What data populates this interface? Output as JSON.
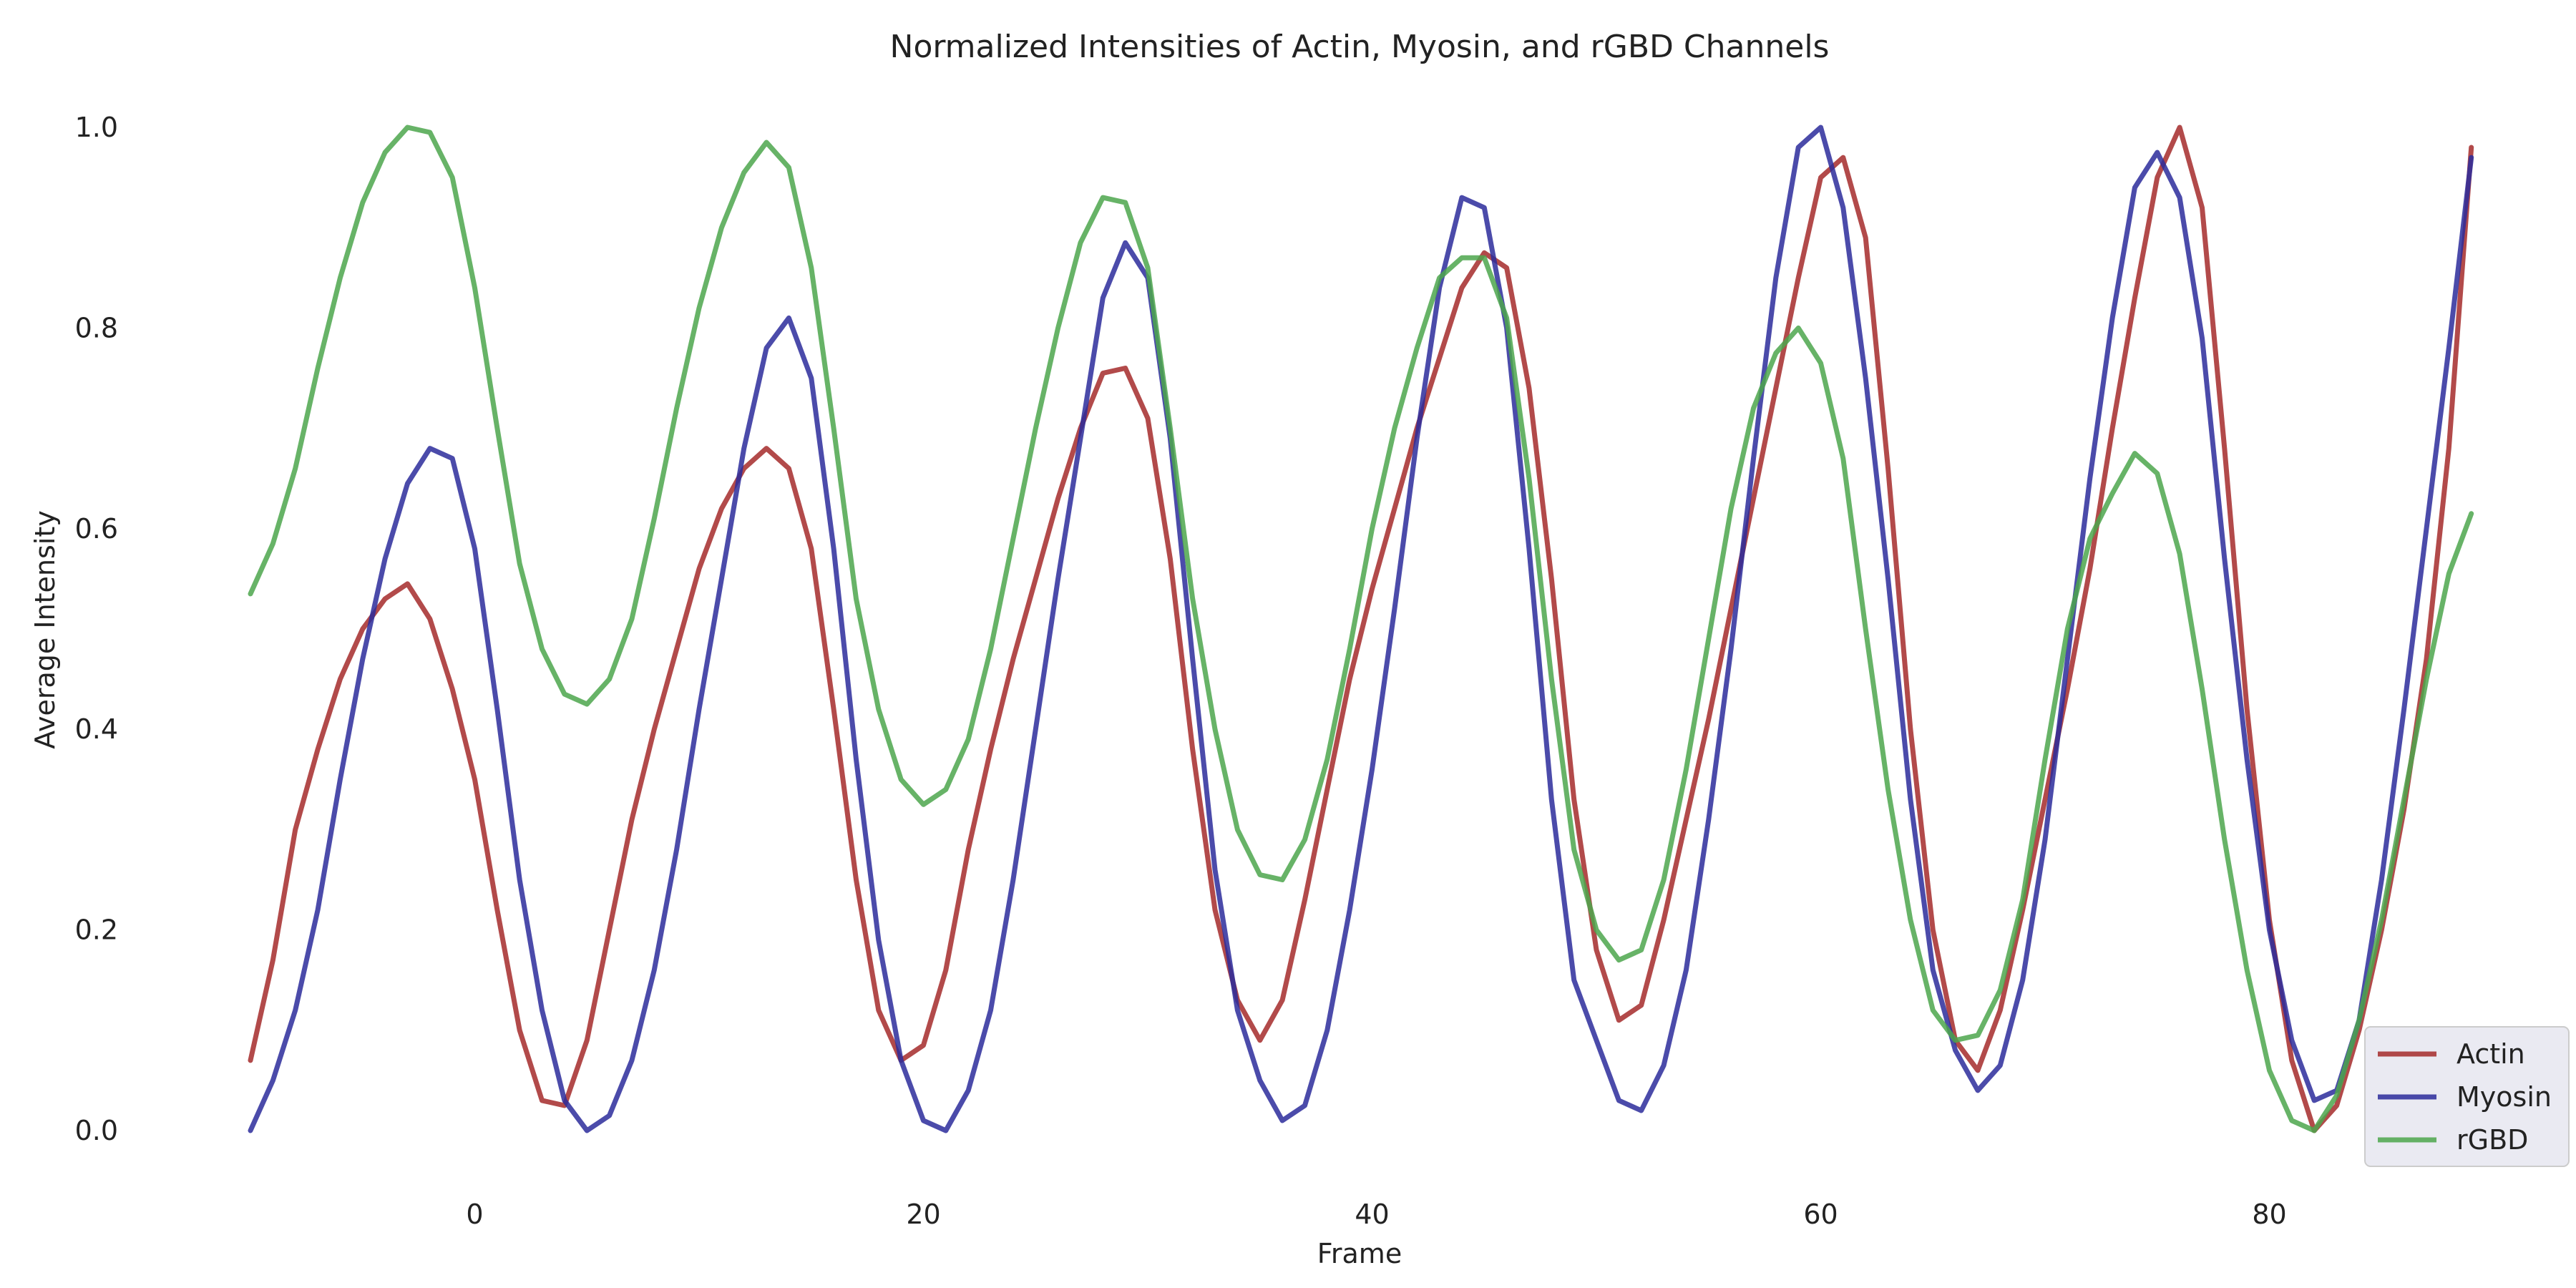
{
  "chart_data": {
    "type": "line",
    "title": "Normalized Intensities of Actin, Myosin, and rGBD Channels",
    "xlabel": "Frame",
    "ylabel": "Average Intensity",
    "xlim": [
      -10,
      89
    ],
    "ylim": [
      0.0,
      1.0
    ],
    "xticks": [
      0,
      20,
      40,
      60,
      80
    ],
    "yticks": [
      0.0,
      0.2,
      0.4,
      0.6,
      0.8,
      1.0
    ],
    "xtick_labels": [
      "0",
      "20",
      "40",
      "60",
      "80"
    ],
    "ytick_labels": [
      "0.0",
      "0.2",
      "0.4",
      "0.6",
      "0.8",
      "1.0"
    ],
    "grid": false,
    "legend_position": "bottom-right",
    "x_start": -10,
    "x_step": 1,
    "series": [
      {
        "name": "Actin",
        "color": "#A52A2A",
        "values": [
          0.07,
          0.17,
          0.3,
          0.38,
          0.45,
          0.5,
          0.53,
          0.545,
          0.51,
          0.44,
          0.35,
          0.22,
          0.1,
          0.03,
          0.025,
          0.09,
          0.2,
          0.31,
          0.4,
          0.48,
          0.56,
          0.62,
          0.66,
          0.68,
          0.66,
          0.58,
          0.42,
          0.25,
          0.12,
          0.07,
          0.085,
          0.16,
          0.28,
          0.38,
          0.47,
          0.55,
          0.63,
          0.7,
          0.755,
          0.76,
          0.71,
          0.57,
          0.38,
          0.22,
          0.13,
          0.09,
          0.13,
          0.23,
          0.34,
          0.45,
          0.54,
          0.62,
          0.7,
          0.77,
          0.84,
          0.875,
          0.86,
          0.74,
          0.55,
          0.33,
          0.18,
          0.11,
          0.125,
          0.21,
          0.31,
          0.41,
          0.52,
          0.63,
          0.74,
          0.85,
          0.95,
          0.97,
          0.89,
          0.66,
          0.4,
          0.2,
          0.09,
          0.06,
          0.12,
          0.22,
          0.33,
          0.44,
          0.56,
          0.7,
          0.83,
          0.95,
          1.0,
          0.92,
          0.68,
          0.42,
          0.21,
          0.07,
          0.0,
          0.025,
          0.1,
          0.2,
          0.32,
          0.47,
          0.68,
          0.98
        ]
      },
      {
        "name": "Myosin",
        "color": "#2B2B9B",
        "values": [
          0.0,
          0.05,
          0.12,
          0.22,
          0.35,
          0.47,
          0.57,
          0.645,
          0.68,
          0.67,
          0.58,
          0.42,
          0.25,
          0.12,
          0.03,
          0.0,
          0.015,
          0.07,
          0.16,
          0.28,
          0.42,
          0.55,
          0.68,
          0.78,
          0.81,
          0.75,
          0.58,
          0.37,
          0.19,
          0.07,
          0.01,
          0.0,
          0.04,
          0.12,
          0.25,
          0.4,
          0.55,
          0.69,
          0.83,
          0.885,
          0.85,
          0.69,
          0.47,
          0.26,
          0.12,
          0.05,
          0.01,
          0.025,
          0.1,
          0.22,
          0.36,
          0.52,
          0.69,
          0.84,
          0.93,
          0.92,
          0.8,
          0.58,
          0.33,
          0.15,
          0.09,
          0.03,
          0.02,
          0.065,
          0.16,
          0.31,
          0.48,
          0.67,
          0.85,
          0.98,
          1.0,
          0.92,
          0.75,
          0.55,
          0.33,
          0.16,
          0.08,
          0.04,
          0.065,
          0.15,
          0.29,
          0.47,
          0.65,
          0.81,
          0.94,
          0.975,
          0.93,
          0.79,
          0.57,
          0.37,
          0.2,
          0.09,
          0.03,
          0.04,
          0.11,
          0.25,
          0.42,
          0.6,
          0.78,
          0.97
        ]
      },
      {
        "name": "rGBD",
        "color": "#4CA64C",
        "values": [
          0.535,
          0.585,
          0.66,
          0.76,
          0.85,
          0.925,
          0.975,
          1.0,
          0.995,
          0.95,
          0.84,
          0.7,
          0.565,
          0.48,
          0.435,
          0.425,
          0.45,
          0.51,
          0.61,
          0.72,
          0.82,
          0.9,
          0.955,
          0.985,
          0.96,
          0.86,
          0.7,
          0.53,
          0.42,
          0.35,
          0.325,
          0.34,
          0.39,
          0.48,
          0.59,
          0.7,
          0.8,
          0.885,
          0.93,
          0.925,
          0.86,
          0.7,
          0.53,
          0.4,
          0.3,
          0.255,
          0.25,
          0.29,
          0.37,
          0.48,
          0.6,
          0.7,
          0.78,
          0.85,
          0.87,
          0.87,
          0.81,
          0.65,
          0.45,
          0.28,
          0.2,
          0.17,
          0.18,
          0.25,
          0.36,
          0.49,
          0.62,
          0.72,
          0.775,
          0.8,
          0.765,
          0.67,
          0.5,
          0.34,
          0.21,
          0.12,
          0.09,
          0.095,
          0.14,
          0.23,
          0.37,
          0.5,
          0.59,
          0.635,
          0.675,
          0.655,
          0.575,
          0.44,
          0.29,
          0.16,
          0.06,
          0.01,
          0.0,
          0.035,
          0.11,
          0.21,
          0.33,
          0.45,
          0.555,
          0.615
        ]
      }
    ]
  }
}
